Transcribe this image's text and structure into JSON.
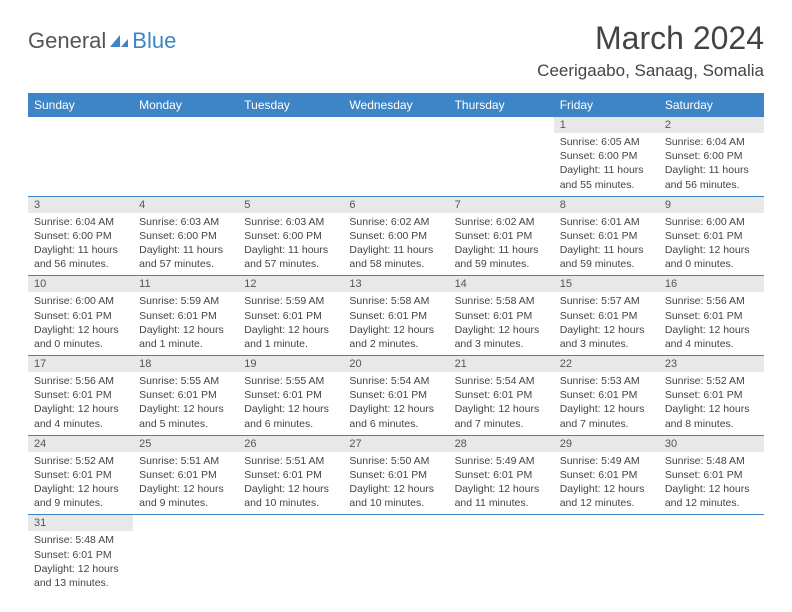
{
  "logo": {
    "general": "General",
    "blue": "Blue"
  },
  "title": "March 2024",
  "location": "Ceerigaabo, Sanaag, Somalia",
  "days_of_week": [
    "Sunday",
    "Monday",
    "Tuesday",
    "Wednesday",
    "Thursday",
    "Friday",
    "Saturday"
  ],
  "colors": {
    "header_bg": "#3d85c6",
    "header_text": "#ffffff",
    "daynum_bg": "#e8e8e8",
    "border": "#3d85c6",
    "body_text": "#444444"
  },
  "weeks": [
    [
      null,
      null,
      null,
      null,
      null,
      {
        "n": "1",
        "sunrise": "Sunrise: 6:05 AM",
        "sunset": "Sunset: 6:00 PM",
        "daylight1": "Daylight: 11 hours",
        "daylight2": "and 55 minutes."
      },
      {
        "n": "2",
        "sunrise": "Sunrise: 6:04 AM",
        "sunset": "Sunset: 6:00 PM",
        "daylight1": "Daylight: 11 hours",
        "daylight2": "and 56 minutes."
      }
    ],
    [
      {
        "n": "3",
        "sunrise": "Sunrise: 6:04 AM",
        "sunset": "Sunset: 6:00 PM",
        "daylight1": "Daylight: 11 hours",
        "daylight2": "and 56 minutes."
      },
      {
        "n": "4",
        "sunrise": "Sunrise: 6:03 AM",
        "sunset": "Sunset: 6:00 PM",
        "daylight1": "Daylight: 11 hours",
        "daylight2": "and 57 minutes."
      },
      {
        "n": "5",
        "sunrise": "Sunrise: 6:03 AM",
        "sunset": "Sunset: 6:00 PM",
        "daylight1": "Daylight: 11 hours",
        "daylight2": "and 57 minutes."
      },
      {
        "n": "6",
        "sunrise": "Sunrise: 6:02 AM",
        "sunset": "Sunset: 6:00 PM",
        "daylight1": "Daylight: 11 hours",
        "daylight2": "and 58 minutes."
      },
      {
        "n": "7",
        "sunrise": "Sunrise: 6:02 AM",
        "sunset": "Sunset: 6:01 PM",
        "daylight1": "Daylight: 11 hours",
        "daylight2": "and 59 minutes."
      },
      {
        "n": "8",
        "sunrise": "Sunrise: 6:01 AM",
        "sunset": "Sunset: 6:01 PM",
        "daylight1": "Daylight: 11 hours",
        "daylight2": "and 59 minutes."
      },
      {
        "n": "9",
        "sunrise": "Sunrise: 6:00 AM",
        "sunset": "Sunset: 6:01 PM",
        "daylight1": "Daylight: 12 hours",
        "daylight2": "and 0 minutes."
      }
    ],
    [
      {
        "n": "10",
        "sunrise": "Sunrise: 6:00 AM",
        "sunset": "Sunset: 6:01 PM",
        "daylight1": "Daylight: 12 hours",
        "daylight2": "and 0 minutes."
      },
      {
        "n": "11",
        "sunrise": "Sunrise: 5:59 AM",
        "sunset": "Sunset: 6:01 PM",
        "daylight1": "Daylight: 12 hours",
        "daylight2": "and 1 minute."
      },
      {
        "n": "12",
        "sunrise": "Sunrise: 5:59 AM",
        "sunset": "Sunset: 6:01 PM",
        "daylight1": "Daylight: 12 hours",
        "daylight2": "and 1 minute."
      },
      {
        "n": "13",
        "sunrise": "Sunrise: 5:58 AM",
        "sunset": "Sunset: 6:01 PM",
        "daylight1": "Daylight: 12 hours",
        "daylight2": "and 2 minutes."
      },
      {
        "n": "14",
        "sunrise": "Sunrise: 5:58 AM",
        "sunset": "Sunset: 6:01 PM",
        "daylight1": "Daylight: 12 hours",
        "daylight2": "and 3 minutes."
      },
      {
        "n": "15",
        "sunrise": "Sunrise: 5:57 AM",
        "sunset": "Sunset: 6:01 PM",
        "daylight1": "Daylight: 12 hours",
        "daylight2": "and 3 minutes."
      },
      {
        "n": "16",
        "sunrise": "Sunrise: 5:56 AM",
        "sunset": "Sunset: 6:01 PM",
        "daylight1": "Daylight: 12 hours",
        "daylight2": "and 4 minutes."
      }
    ],
    [
      {
        "n": "17",
        "sunrise": "Sunrise: 5:56 AM",
        "sunset": "Sunset: 6:01 PM",
        "daylight1": "Daylight: 12 hours",
        "daylight2": "and 4 minutes."
      },
      {
        "n": "18",
        "sunrise": "Sunrise: 5:55 AM",
        "sunset": "Sunset: 6:01 PM",
        "daylight1": "Daylight: 12 hours",
        "daylight2": "and 5 minutes."
      },
      {
        "n": "19",
        "sunrise": "Sunrise: 5:55 AM",
        "sunset": "Sunset: 6:01 PM",
        "daylight1": "Daylight: 12 hours",
        "daylight2": "and 6 minutes."
      },
      {
        "n": "20",
        "sunrise": "Sunrise: 5:54 AM",
        "sunset": "Sunset: 6:01 PM",
        "daylight1": "Daylight: 12 hours",
        "daylight2": "and 6 minutes."
      },
      {
        "n": "21",
        "sunrise": "Sunrise: 5:54 AM",
        "sunset": "Sunset: 6:01 PM",
        "daylight1": "Daylight: 12 hours",
        "daylight2": "and 7 minutes."
      },
      {
        "n": "22",
        "sunrise": "Sunrise: 5:53 AM",
        "sunset": "Sunset: 6:01 PM",
        "daylight1": "Daylight: 12 hours",
        "daylight2": "and 7 minutes."
      },
      {
        "n": "23",
        "sunrise": "Sunrise: 5:52 AM",
        "sunset": "Sunset: 6:01 PM",
        "daylight1": "Daylight: 12 hours",
        "daylight2": "and 8 minutes."
      }
    ],
    [
      {
        "n": "24",
        "sunrise": "Sunrise: 5:52 AM",
        "sunset": "Sunset: 6:01 PM",
        "daylight1": "Daylight: 12 hours",
        "daylight2": "and 9 minutes."
      },
      {
        "n": "25",
        "sunrise": "Sunrise: 5:51 AM",
        "sunset": "Sunset: 6:01 PM",
        "daylight1": "Daylight: 12 hours",
        "daylight2": "and 9 minutes."
      },
      {
        "n": "26",
        "sunrise": "Sunrise: 5:51 AM",
        "sunset": "Sunset: 6:01 PM",
        "daylight1": "Daylight: 12 hours",
        "daylight2": "and 10 minutes."
      },
      {
        "n": "27",
        "sunrise": "Sunrise: 5:50 AM",
        "sunset": "Sunset: 6:01 PM",
        "daylight1": "Daylight: 12 hours",
        "daylight2": "and 10 minutes."
      },
      {
        "n": "28",
        "sunrise": "Sunrise: 5:49 AM",
        "sunset": "Sunset: 6:01 PM",
        "daylight1": "Daylight: 12 hours",
        "daylight2": "and 11 minutes."
      },
      {
        "n": "29",
        "sunrise": "Sunrise: 5:49 AM",
        "sunset": "Sunset: 6:01 PM",
        "daylight1": "Daylight: 12 hours",
        "daylight2": "and 12 minutes."
      },
      {
        "n": "30",
        "sunrise": "Sunrise: 5:48 AM",
        "sunset": "Sunset: 6:01 PM",
        "daylight1": "Daylight: 12 hours",
        "daylight2": "and 12 minutes."
      }
    ],
    [
      {
        "n": "31",
        "sunrise": "Sunrise: 5:48 AM",
        "sunset": "Sunset: 6:01 PM",
        "daylight1": "Daylight: 12 hours",
        "daylight2": "and 13 minutes."
      },
      null,
      null,
      null,
      null,
      null,
      null
    ]
  ]
}
